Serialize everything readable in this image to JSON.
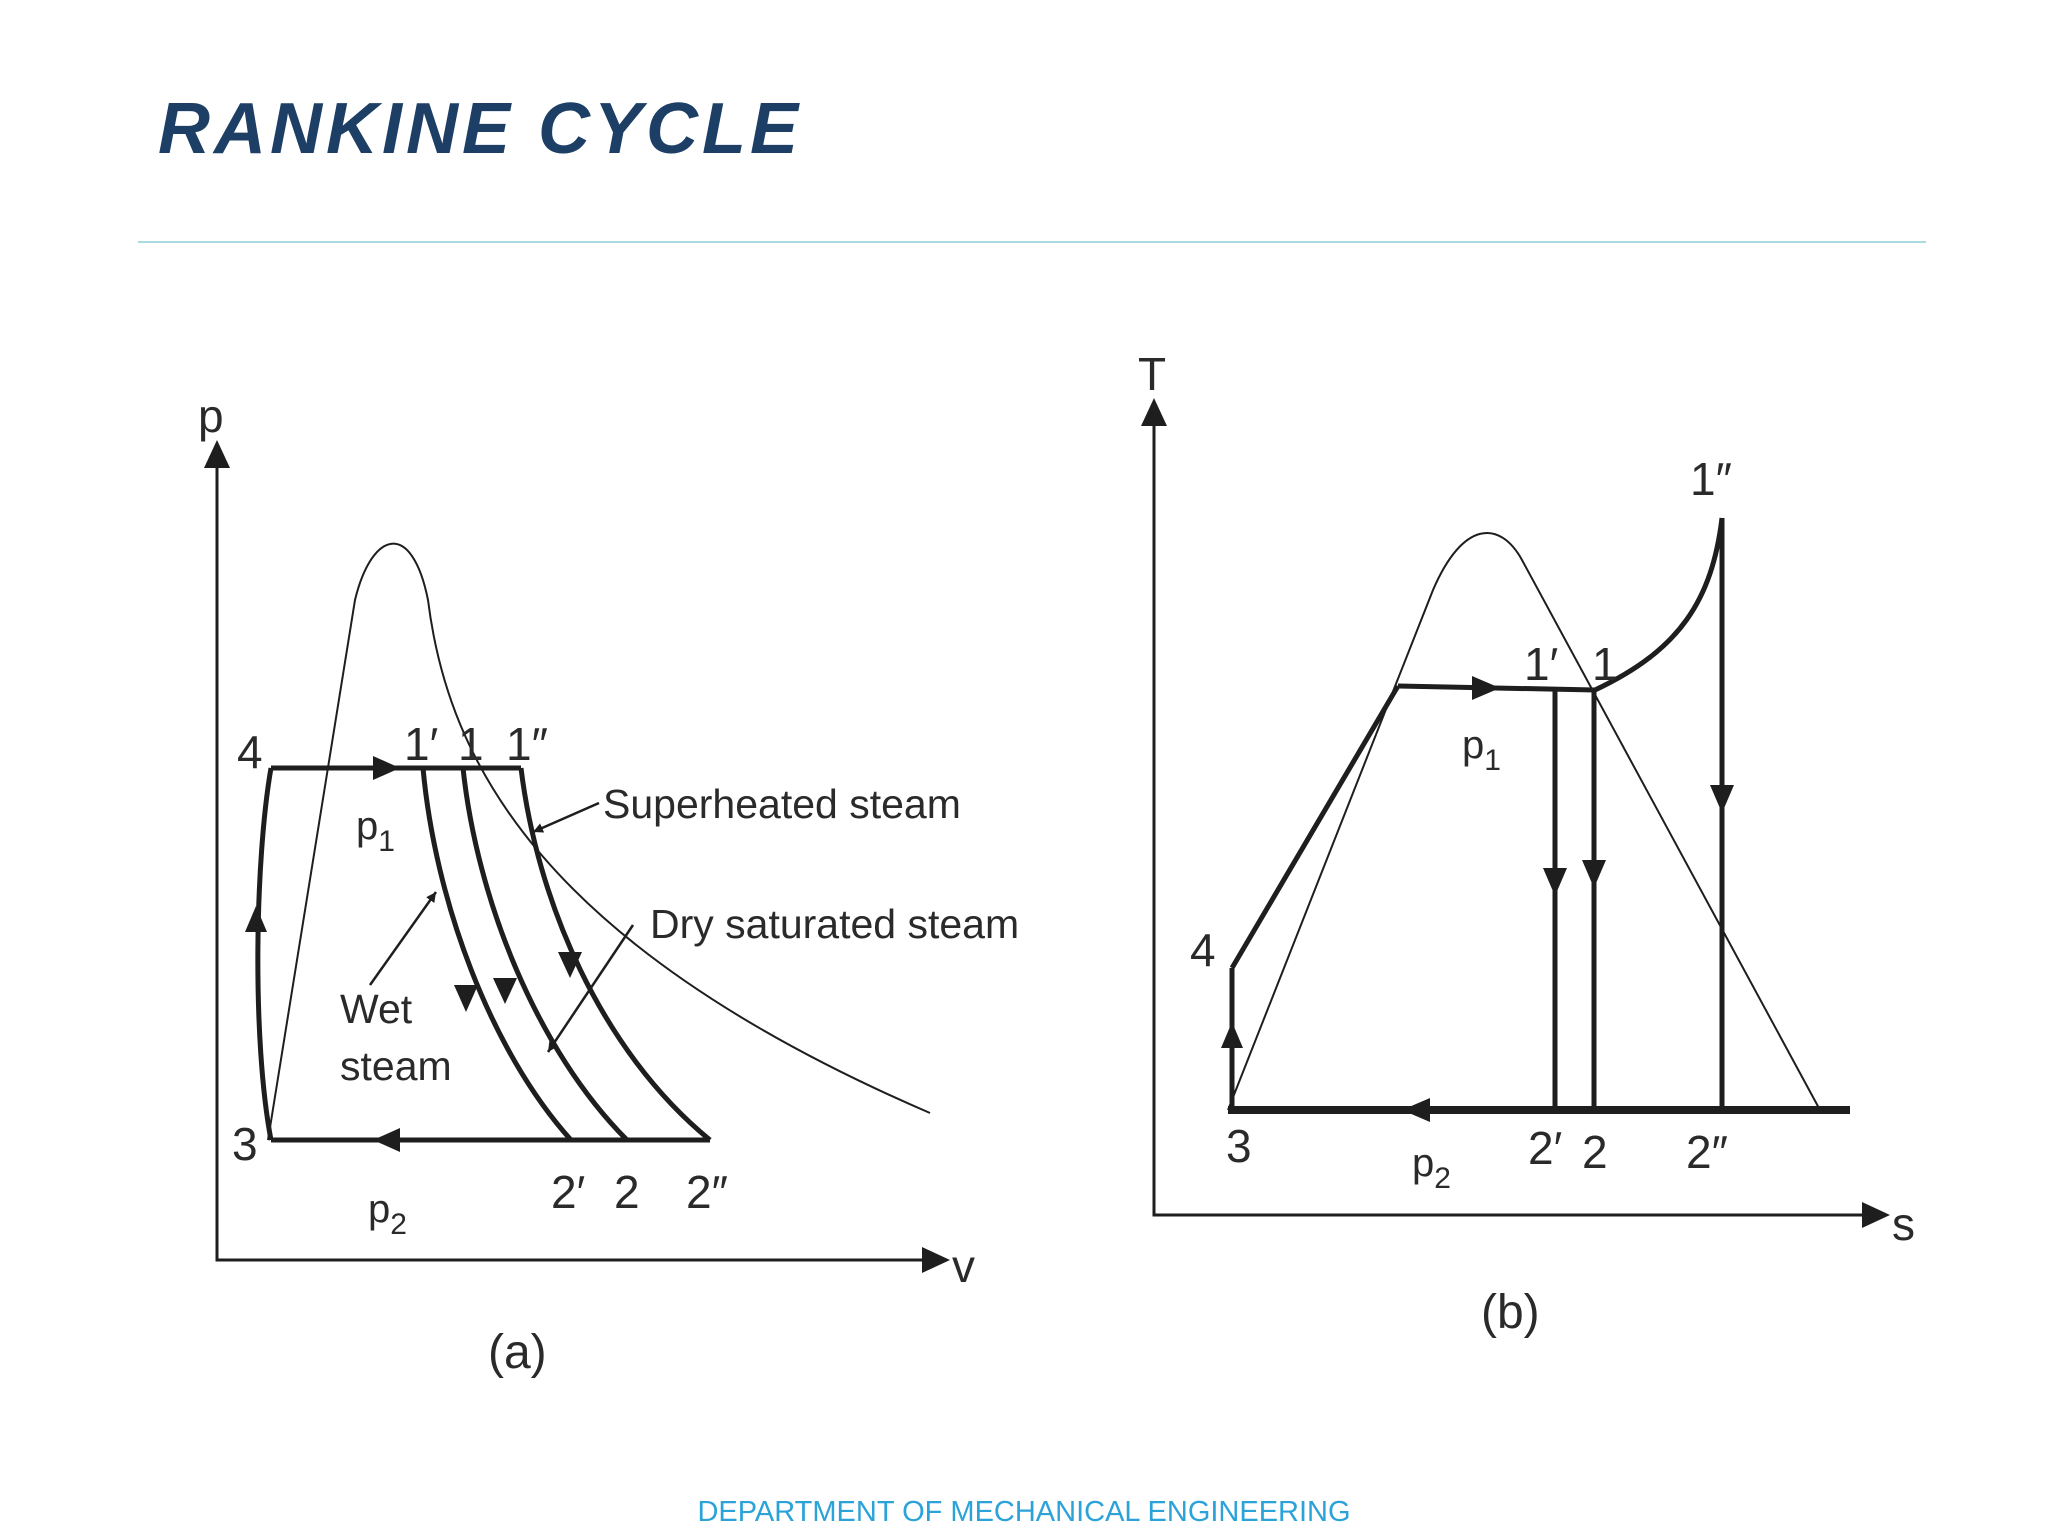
{
  "slide": {
    "title": "RANKINE CYCLE",
    "footer": "DEPARTMENT OF MECHANICAL ENGINEERING"
  },
  "diagram_a": {
    "caption": "(a)",
    "y_axis": "p",
    "x_axis": "v",
    "states": {
      "s4": "4",
      "s1p": "1′",
      "s1": "1",
      "s1pp": "1″",
      "s3": "3",
      "s2p": "2′",
      "s2": "2",
      "s2pp": "2″"
    },
    "p1": "p",
    "p1_sub": "1",
    "p2": "p",
    "p2_sub": "2",
    "superheated": "Superheated steam",
    "dry": "Dry saturated steam",
    "wet_line1": "Wet",
    "wet_line2": "steam"
  },
  "diagram_b": {
    "caption": "(b)",
    "y_axis": "T",
    "x_axis": "s",
    "states": {
      "s1pp": "1″",
      "s1p": "1′",
      "s1": "1",
      "s4": "4",
      "s3": "3",
      "s2p": "2′",
      "s2": "2",
      "s2pp": "2″"
    },
    "p1": "p",
    "p1_sub": "1",
    "p2": "p",
    "p2_sub": "2"
  },
  "colors": {
    "title": "#1d3f66",
    "divider": "#a9dbe3",
    "footer": "#2ba2d8",
    "line": "#1e1e1e"
  }
}
